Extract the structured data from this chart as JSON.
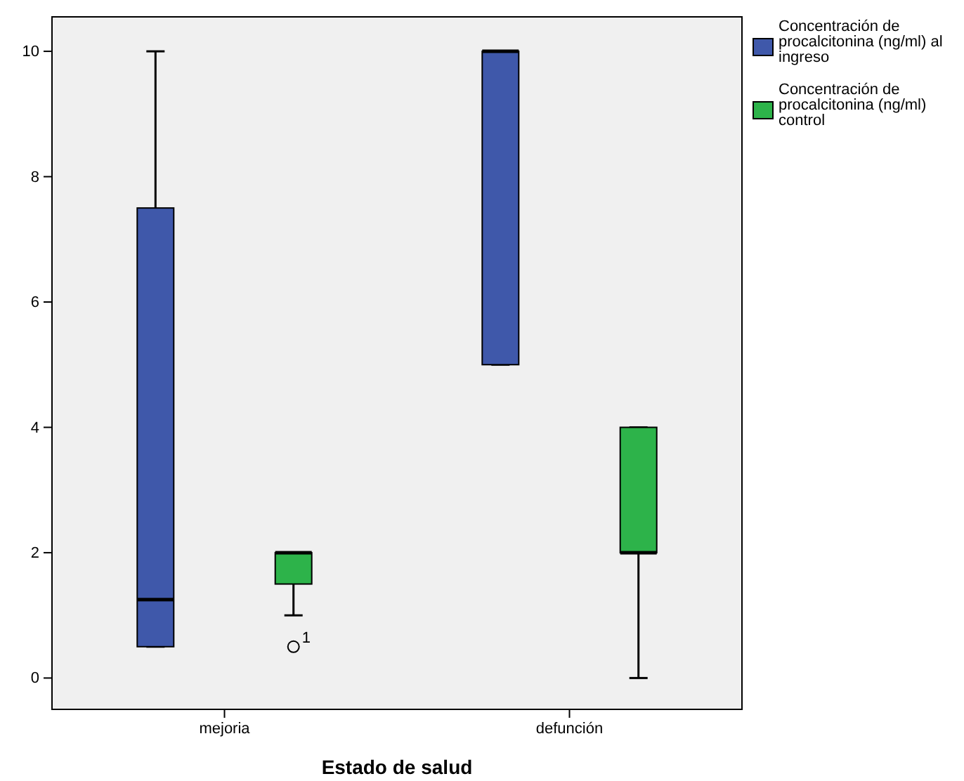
{
  "chart_data": {
    "type": "box",
    "xlabel": "Estado de salud",
    "categories": [
      "mejoria",
      "defunción"
    ],
    "ylim": [
      -0.5,
      10.55
    ],
    "yticks": [
      0,
      2,
      4,
      6,
      8,
      10
    ],
    "grid": false,
    "legend": "top right",
    "series": [
      {
        "name": "Concentración de procalcitonina (ng/ml) al ingreso",
        "color": "#3f58aa",
        "boxes": [
          {
            "low": 0.5,
            "q1": 0.5,
            "median": 1.25,
            "q3": 7.5,
            "high": 10
          },
          {
            "low": 5,
            "q1": 5,
            "median": 10,
            "q3": 10,
            "high": 10
          }
        ]
      },
      {
        "name": "Concentración de procalcitonina (ng/ml) control",
        "color": "#2db34a",
        "boxes": [
          {
            "low": 1,
            "q1": 1.5,
            "median": 2,
            "q3": 2,
            "high": 2,
            "outliers": [
              0.5
            ]
          },
          {
            "low": 0,
            "q1": 2,
            "median": 2,
            "q3": 4,
            "high": 4
          }
        ]
      }
    ],
    "annotations": [
      "1"
    ]
  }
}
